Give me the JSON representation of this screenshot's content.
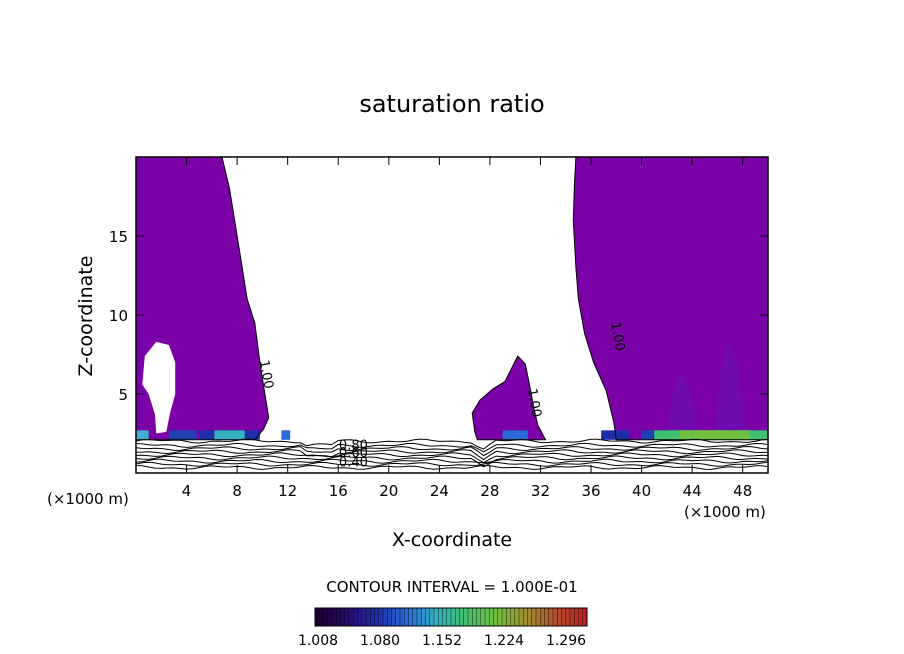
{
  "chart_data": {
    "type": "heatmap",
    "title": "saturation ratio",
    "xlabel": "X-coordinate",
    "ylabel": "Z-coordinate",
    "x_unit_label": "(×1000 m)",
    "y_unit_label": "(×1000 m)",
    "xlim": [
      0,
      50
    ],
    "ylim": [
      0,
      20
    ],
    "x_ticks": [
      4,
      8,
      12,
      16,
      20,
      24,
      28,
      32,
      36,
      40,
      44,
      48
    ],
    "y_ticks": [
      5,
      10,
      15
    ],
    "contour_interval_text": "CONTOUR INTERVAL = 1.000E-01",
    "contour_labels": [
      {
        "text": "1.00",
        "x": 10.0,
        "y": 6.2
      },
      {
        "text": "1.00",
        "x": 31.2,
        "y": 4.4
      },
      {
        "text": "1.00",
        "x": 37.8,
        "y": 8.6
      },
      {
        "text": "0.80",
        "x": 17.2,
        "y": 1.5
      },
      {
        "text": "0.60",
        "x": 17.2,
        "y": 1.0
      },
      {
        "text": "0.40",
        "x": 17.2,
        "y": 0.4
      }
    ],
    "colorbar": {
      "ticks": [
        "1.008",
        "1.080",
        "1.152",
        "1.224",
        "1.296"
      ],
      "colors": [
        "#1a0030",
        "#2a0a6a",
        "#1e2ea8",
        "#2a6ad8",
        "#34b0c0",
        "#40c070",
        "#70c040",
        "#a09030",
        "#b05030",
        "#c02020"
      ]
    },
    "fill_color": "#7b00a8",
    "regions": [
      {
        "name": "left supersaturated column",
        "level_min": 1.008,
        "x_range": [
          0,
          10
        ],
        "z_range": [
          2.0,
          20
        ]
      },
      {
        "name": "mid-domain cloud",
        "level_min": 1.008,
        "x_range": [
          26.8,
          32.4
        ],
        "z_range": [
          2.0,
          7.4
        ]
      },
      {
        "name": "right supersaturated column",
        "level_min": 1.008,
        "x_range": [
          34.8,
          50
        ],
        "z_range": [
          2.0,
          20
        ]
      }
    ]
  }
}
